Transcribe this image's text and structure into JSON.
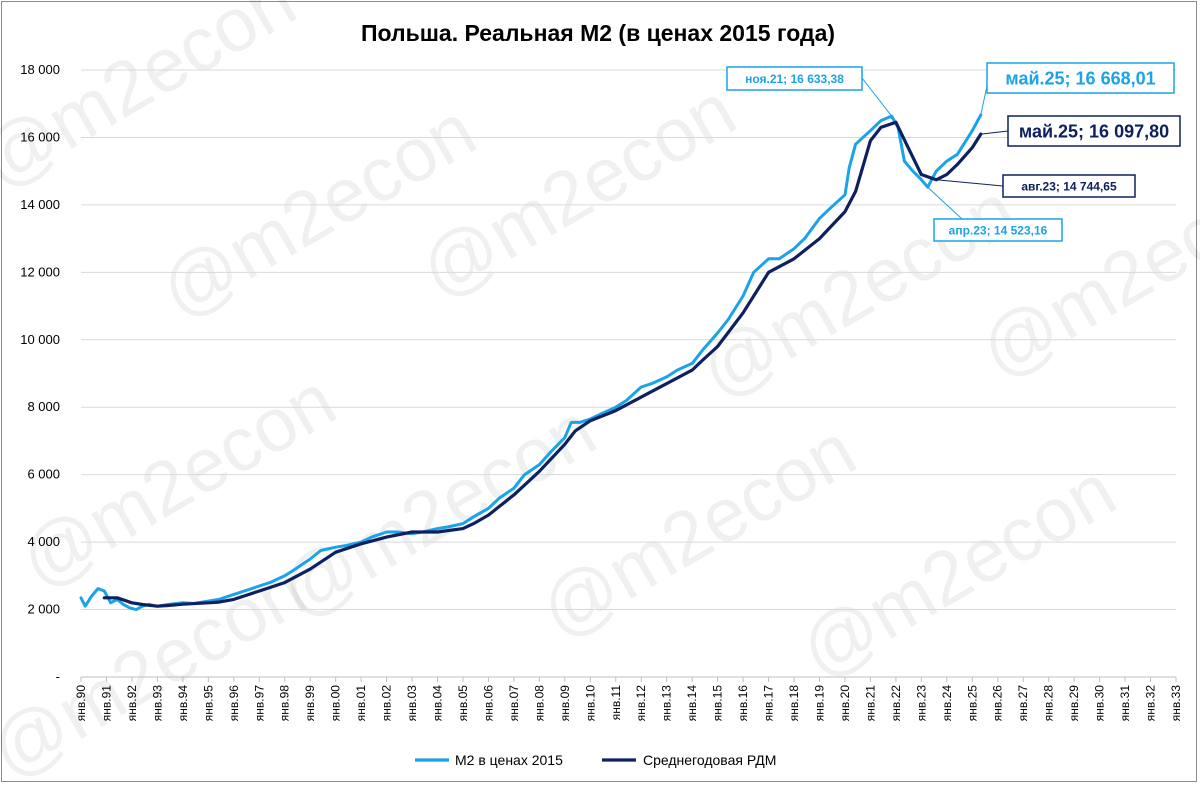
{
  "watermark": "@m2econ",
  "colors": {
    "m2_real": "#1aa3e8",
    "ma": "#0e2060",
    "grid": "#d9d9d9"
  },
  "chart_data": {
    "type": "line",
    "title": "Польша. Реальная М2 (в ценах 2015 года)",
    "xlabel": "",
    "ylabel": "",
    "ylim": [
      0,
      18000
    ],
    "y_ticks": [
      "-",
      "2 000",
      "4 000",
      "6 000",
      "8 000",
      "10 000",
      "12 000",
      "14 000",
      "16 000",
      "18 000"
    ],
    "x_ticks": [
      "янв.90",
      "янв.91",
      "янв.92",
      "янв.93",
      "янв.94",
      "янв.95",
      "янв.96",
      "янв.97",
      "янв.98",
      "янв.99",
      "янв.00",
      "янв.01",
      "янв.02",
      "янв.03",
      "янв.04",
      "янв.05",
      "янв.06",
      "янв.07",
      "янв.08",
      "янв.09",
      "янв.10",
      "янв.11",
      "янв.12",
      "янв.13",
      "янв.14",
      "янв.15",
      "янв.16",
      "янв.17",
      "янв.18",
      "янв.19",
      "янв.20",
      "янв.21",
      "янв.22",
      "янв.23",
      "янв.24",
      "янв.25",
      "янв.26",
      "янв.27",
      "янв.28",
      "янв.29",
      "янв.30",
      "янв.31",
      "янв.32",
      "янв.33"
    ],
    "grid": true,
    "legend_position": "bottom",
    "series": [
      {
        "name": "М2 в ценах 2015",
        "color": "#1aa3e8",
        "points": [
          [
            "1990-01",
            2350
          ],
          [
            "1990-03",
            2100
          ],
          [
            "1990-06",
            2400
          ],
          [
            "1990-09",
            2620
          ],
          [
            "1990-12",
            2550
          ],
          [
            "1991-03",
            2200
          ],
          [
            "1991-06",
            2300
          ],
          [
            "1991-09",
            2150
          ],
          [
            "1991-12",
            2050
          ],
          [
            "1992-03",
            2000
          ],
          [
            "1992-06",
            2100
          ],
          [
            "1992-09",
            2150
          ],
          [
            "1993-01",
            2100
          ],
          [
            "1993-06",
            2150
          ],
          [
            "1994-01",
            2200
          ],
          [
            "1994-06",
            2180
          ],
          [
            "1995-01",
            2250
          ],
          [
            "1995-06",
            2300
          ],
          [
            "1996-01",
            2450
          ],
          [
            "1996-06",
            2550
          ],
          [
            "1997-01",
            2700
          ],
          [
            "1997-06",
            2800
          ],
          [
            "1998-01",
            3000
          ],
          [
            "1998-06",
            3200
          ],
          [
            "1999-01",
            3500
          ],
          [
            "1999-06",
            3750
          ],
          [
            "2000-01",
            3850
          ],
          [
            "2000-06",
            3900
          ],
          [
            "2001-01",
            4000
          ],
          [
            "2001-06",
            4150
          ],
          [
            "2002-01",
            4300
          ],
          [
            "2002-06",
            4300
          ],
          [
            "2003-01",
            4250
          ],
          [
            "2003-06",
            4300
          ],
          [
            "2004-01",
            4400
          ],
          [
            "2004-06",
            4450
          ],
          [
            "2005-01",
            4550
          ],
          [
            "2005-06",
            4750
          ],
          [
            "2006-01",
            5000
          ],
          [
            "2006-06",
            5300
          ],
          [
            "2007-01",
            5600
          ],
          [
            "2007-06",
            6000
          ],
          [
            "2008-01",
            6300
          ],
          [
            "2008-06",
            6650
          ],
          [
            "2009-01",
            7100
          ],
          [
            "2009-04",
            7550
          ],
          [
            "2009-08",
            7550
          ],
          [
            "2010-01",
            7650
          ],
          [
            "2010-06",
            7800
          ],
          [
            "2011-01",
            8000
          ],
          [
            "2011-06",
            8200
          ],
          [
            "2012-01",
            8600
          ],
          [
            "2012-06",
            8700
          ],
          [
            "2013-01",
            8900
          ],
          [
            "2013-06",
            9100
          ],
          [
            "2014-01",
            9300
          ],
          [
            "2014-06",
            9700
          ],
          [
            "2015-01",
            10200
          ],
          [
            "2015-06",
            10600
          ],
          [
            "2016-01",
            11300
          ],
          [
            "2016-06",
            12000
          ],
          [
            "2017-01",
            12400
          ],
          [
            "2017-06",
            12400
          ],
          [
            "2018-01",
            12700
          ],
          [
            "2018-06",
            13000
          ],
          [
            "2019-01",
            13600
          ],
          [
            "2019-06",
            13900
          ],
          [
            "2020-01",
            14300
          ],
          [
            "2020-03",
            15100
          ],
          [
            "2020-06",
            15800
          ],
          [
            "2021-01",
            16200
          ],
          [
            "2021-06",
            16500
          ],
          [
            "2021-11",
            16633.38
          ],
          [
            "2022-02",
            16300
          ],
          [
            "2022-05",
            15300
          ],
          [
            "2022-09",
            15000
          ],
          [
            "2023-01",
            14750
          ],
          [
            "2023-04",
            14523.16
          ],
          [
            "2023-08",
            15000
          ],
          [
            "2024-01",
            15300
          ],
          [
            "2024-06",
            15500
          ],
          [
            "2025-01",
            16200
          ],
          [
            "2025-05",
            16668.01
          ]
        ]
      },
      {
        "name": "Среднегодовая РДМ",
        "color": "#0e2060",
        "points": [
          [
            "1990-12",
            2350
          ],
          [
            "1991-06",
            2350
          ],
          [
            "1992-01",
            2200
          ],
          [
            "1992-06",
            2150
          ],
          [
            "1993-01",
            2100
          ],
          [
            "1993-06",
            2120
          ],
          [
            "1994-01",
            2160
          ],
          [
            "1995-01",
            2200
          ],
          [
            "1995-06",
            2220
          ],
          [
            "1996-01",
            2300
          ],
          [
            "1997-01",
            2550
          ],
          [
            "1998-01",
            2800
          ],
          [
            "1999-01",
            3200
          ],
          [
            "2000-01",
            3700
          ],
          [
            "2001-01",
            3950
          ],
          [
            "2002-01",
            4150
          ],
          [
            "2003-01",
            4300
          ],
          [
            "2004-01",
            4300
          ],
          [
            "2005-01",
            4400
          ],
          [
            "2005-06",
            4550
          ],
          [
            "2006-01",
            4800
          ],
          [
            "2007-01",
            5400
          ],
          [
            "2008-01",
            6100
          ],
          [
            "2009-01",
            6900
          ],
          [
            "2009-06",
            7300
          ],
          [
            "2010-01",
            7600
          ],
          [
            "2011-01",
            7900
          ],
          [
            "2012-01",
            8300
          ],
          [
            "2013-01",
            8700
          ],
          [
            "2014-01",
            9100
          ],
          [
            "2014-06",
            9400
          ],
          [
            "2015-01",
            9800
          ],
          [
            "2016-01",
            10800
          ],
          [
            "2017-01",
            12000
          ],
          [
            "2018-01",
            12400
          ],
          [
            "2019-01",
            13000
          ],
          [
            "2020-01",
            13800
          ],
          [
            "2020-06",
            14400
          ],
          [
            "2021-01",
            15900
          ],
          [
            "2021-06",
            16300
          ],
          [
            "2022-01",
            16450
          ],
          [
            "2022-06",
            15800
          ],
          [
            "2023-01",
            14900
          ],
          [
            "2023-08",
            14744.65
          ],
          [
            "2024-01",
            14900
          ],
          [
            "2024-06",
            15200
          ],
          [
            "2025-01",
            15700
          ],
          [
            "2025-05",
            16097.8
          ]
        ]
      }
    ],
    "annotations": [
      {
        "text": "ноя.21; 16 633,38",
        "series": 0,
        "date": "2021-11",
        "value": 16633.38,
        "style": "light"
      },
      {
        "text": "май.25; 16 668,01",
        "series": 0,
        "date": "2025-05",
        "value": 16668.01,
        "style": "light-big"
      },
      {
        "text": "май.25; 16 097,80",
        "series": 1,
        "date": "2025-05",
        "value": 16097.8,
        "style": "dark-big"
      },
      {
        "text": "авг.23; 14 744,65",
        "series": 1,
        "date": "2023-08",
        "value": 14744.65,
        "style": "dark"
      },
      {
        "text": "апр.23; 14 523,16",
        "series": 0,
        "date": "2023-04",
        "value": 14523.16,
        "style": "light"
      }
    ]
  }
}
